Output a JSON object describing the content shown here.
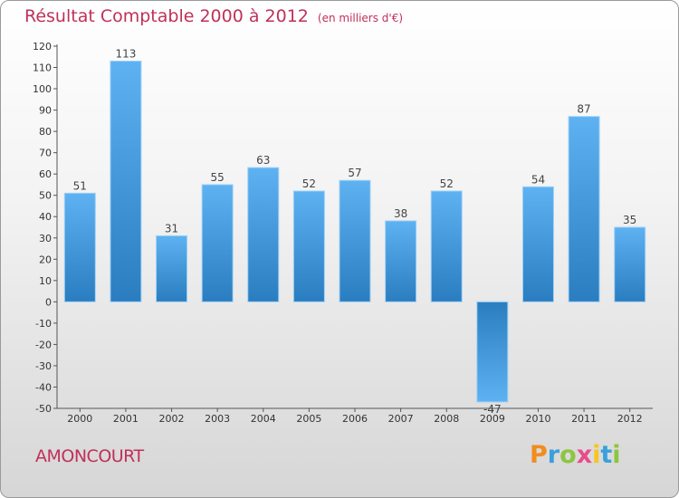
{
  "title": "Résultat Comptable 2000 à 2012",
  "subtitle": "(en milliers d'€)",
  "commune": "AMONCOURT",
  "logo": {
    "letters": [
      "P",
      "r",
      "o",
      "x",
      "i",
      "t",
      "i"
    ],
    "colors": [
      "#f28c1e",
      "#3aa0dc",
      "#8cc63f",
      "#e84c8b",
      "#f7c51e",
      "#3aa0dc",
      "#8cc63f"
    ]
  },
  "chart_data": {
    "type": "bar",
    "title": "Résultat Comptable 2000 à 2012",
    "xlabel": "",
    "ylabel": "",
    "categories": [
      "2000",
      "2001",
      "2002",
      "2003",
      "2004",
      "2005",
      "2006",
      "2007",
      "2008",
      "2009",
      "2010",
      "2011",
      "2012"
    ],
    "values": [
      51,
      113,
      31,
      55,
      63,
      52,
      57,
      38,
      52,
      -47,
      54,
      87,
      35
    ],
    "ylim": [
      -50,
      120
    ],
    "yticks": [
      120,
      110,
      100,
      90,
      80,
      70,
      60,
      50,
      40,
      30,
      20,
      10,
      0,
      -10,
      -20,
      -30,
      -40,
      -50
    ],
    "grid": false,
    "colors": {
      "bar_light": "#5aaef0",
      "bar_dark": "#2b7fc0",
      "axis": "#555555"
    }
  }
}
